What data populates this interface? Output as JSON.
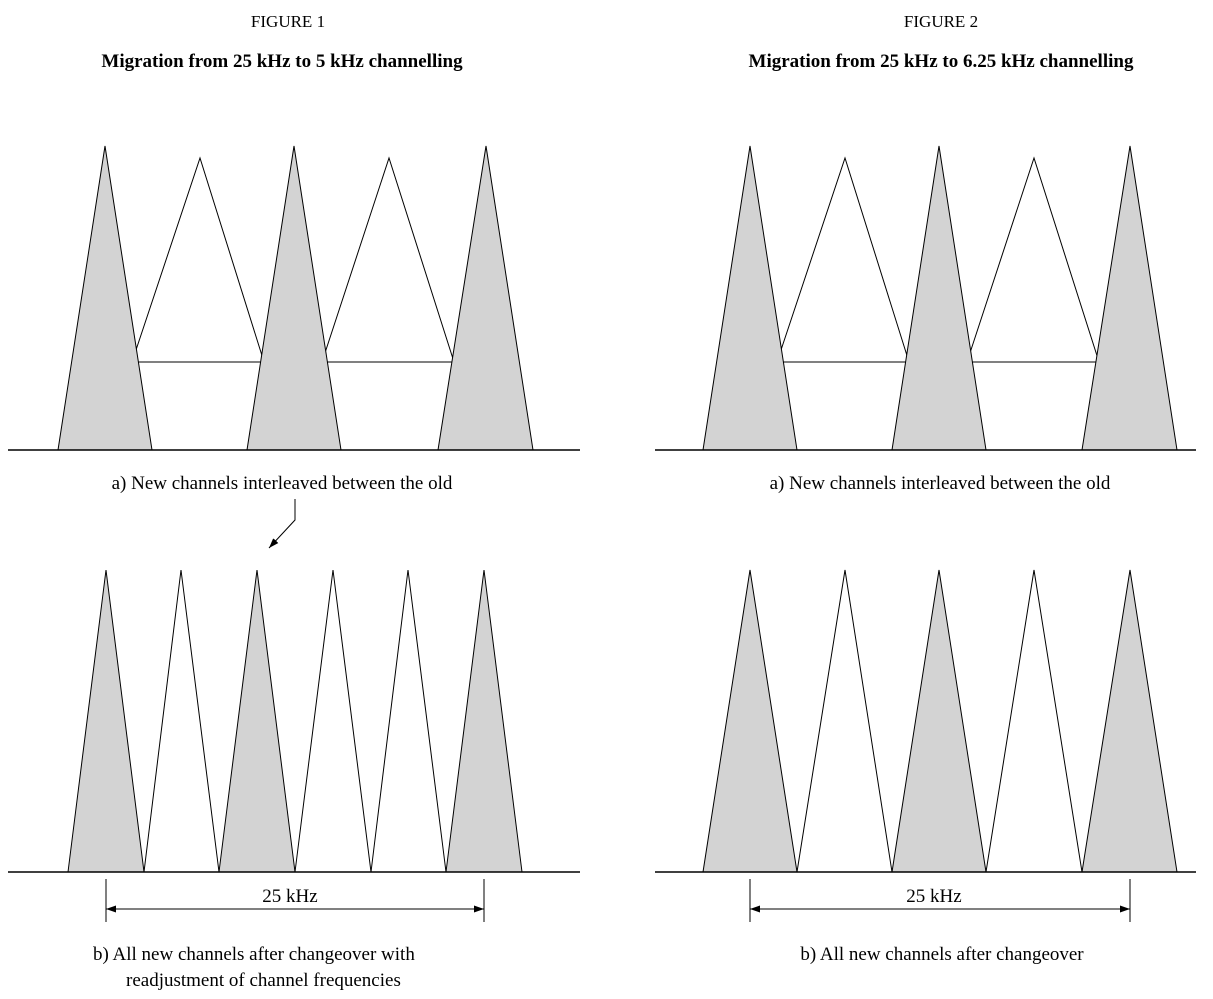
{
  "colors": {
    "old_channel_fill": "#d3d3d3",
    "new_channel_fill": "#ffffff",
    "stroke": "#000000"
  },
  "figure1": {
    "number": "FIGURE 1",
    "title": "Migration from 25 kHz to 5 kHz channelling",
    "caption_a": "a)  New channels interleaved between the old",
    "caption_b_line1": "b)  All new channels after changeover with",
    "caption_b_line2": "readjustment of channel frequencies",
    "dimension_label": "25 kHz"
  },
  "figure2": {
    "number": "FIGURE 2",
    "title": "Migration from 25 kHz to 6.25 kHz channelling",
    "caption_a": "a)  New channels interleaved between the old",
    "caption_b": "b)  All new channels after changeover",
    "dimension_label": "25 kHz"
  }
}
